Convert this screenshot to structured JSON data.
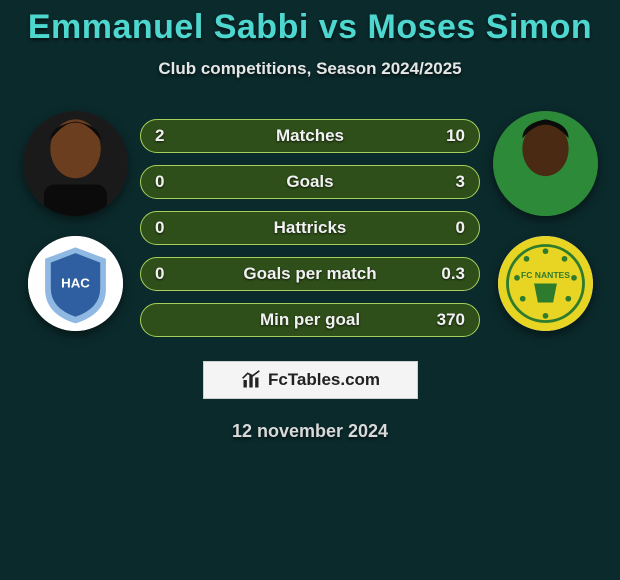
{
  "title": "Emmanuel Sabbi vs Moses Simon",
  "subtitle": "Club competitions, Season 2024/2025",
  "date": "12 november 2024",
  "watermark": "FcTables.com",
  "colors": {
    "background": "#0b2a2c",
    "title": "#4dd7cf",
    "bar_border": "#a7d05a",
    "bar_fill": "#2f4f1a",
    "text": "#e9e9e9"
  },
  "player_left": {
    "name": "Emmanuel Sabbi",
    "avatar_bg": "#1a1a1a",
    "skin": "#6b3e1f",
    "club_name": "Le Havre AC",
    "club_bg": "#ffffff",
    "club_primary": "#2f5fa0",
    "club_secondary": "#8fb8e2"
  },
  "player_right": {
    "name": "Moses Simon",
    "avatar_bg": "#2c8a39",
    "skin": "#4a2a12",
    "shirt": "#2c8a39",
    "club_name": "FC Nantes",
    "club_bg": "#e7d423",
    "club_primary": "#2e7b2e",
    "club_secondary": "#cfe05c"
  },
  "bars": [
    {
      "label": "Matches",
      "left": "2",
      "right": "10"
    },
    {
      "label": "Goals",
      "left": "0",
      "right": "3"
    },
    {
      "label": "Hattricks",
      "left": "0",
      "right": "0"
    },
    {
      "label": "Goals per match",
      "left": "0",
      "right": "0.3"
    },
    {
      "label": "Min per goal",
      "left": "",
      "right": "370"
    }
  ],
  "bar_style": {
    "height": 34,
    "border_radius": 17,
    "border_color": "#a7d05a",
    "fill_color": "#2f4f1a",
    "font_size": 17,
    "gap": 12
  }
}
